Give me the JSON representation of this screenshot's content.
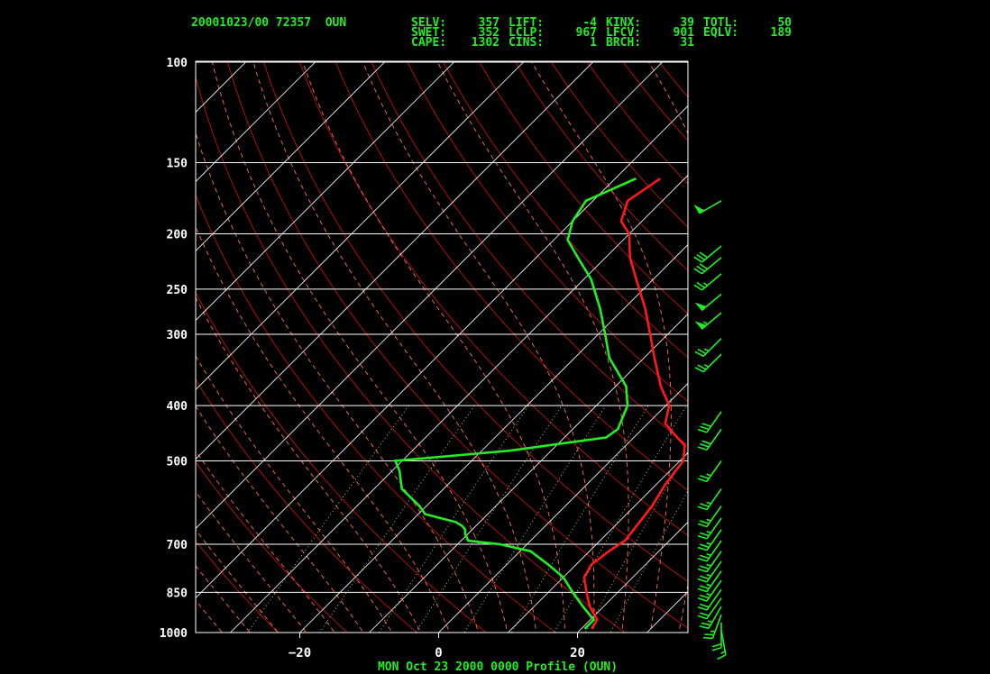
{
  "header": {
    "station_line": "20001023/00 72357  OUN",
    "indices": [
      [
        "SELV:",
        "357",
        "LIFT:",
        "-4",
        "KINX:",
        "39",
        "TOTL:",
        "50"
      ],
      [
        "SWET:",
        "352",
        "LCLP:",
        "967",
        "LFCV:",
        "901",
        "EQLV:",
        "189"
      ],
      [
        "CAPE:",
        "1302",
        "CINS:",
        "1",
        "BRCH:",
        "31",
        "",
        ""
      ]
    ]
  },
  "caption": "MON Oct 23 2000 0000 Profile (OUN)",
  "colors": {
    "temperature": "#ff1a1a",
    "dewpoint": "#22ee22",
    "wind": "#22ee22",
    "isobar": "#ffffff",
    "isotherm": "#ffffff",
    "dry_adiabat": "#c01010",
    "moist_adiabat": "#ff7050",
    "mixing_ratio": "#e8e880",
    "frame": "#ffffff"
  },
  "chart_data": {
    "type": "line",
    "title": "",
    "xlabel": "",
    "ylabel": "",
    "y_scale": "log",
    "ylim": [
      1000,
      100
    ],
    "xlim_at_1000hPa": [
      -35,
      35
    ],
    "pressure_ticks": [
      100,
      150,
      200,
      250,
      300,
      400,
      500,
      700,
      850,
      1000
    ],
    "temperature_ticks": [
      -20,
      0,
      20
    ],
    "series": [
      {
        "key": "temperature",
        "points": [
          [
            985,
            21.5
          ],
          [
            950,
            21.0
          ],
          [
            900,
            18.0
          ],
          [
            850,
            15.5
          ],
          [
            800,
            13.0
          ],
          [
            760,
            12.2
          ],
          [
            720,
            12.8
          ],
          [
            690,
            13.6
          ],
          [
            600,
            12.5
          ],
          [
            550,
            11.3
          ],
          [
            500,
            10.5
          ],
          [
            470,
            8.5
          ],
          [
            450,
            5.5
          ],
          [
            430,
            2.5
          ],
          [
            400,
            0.5
          ],
          [
            370,
            -3.5
          ],
          [
            330,
            -8.5
          ],
          [
            300,
            -12.5
          ],
          [
            270,
            -17.0
          ],
          [
            240,
            -22.5
          ],
          [
            220,
            -26.5
          ],
          [
            200,
            -30.0
          ],
          [
            190,
            -33.0
          ],
          [
            175,
            -35.0
          ],
          [
            160,
            -33.5
          ]
        ]
      },
      {
        "key": "dewpoint",
        "points": [
          [
            985,
            20.5
          ],
          [
            950,
            20.5
          ],
          [
            900,
            17.0
          ],
          [
            850,
            13.5
          ],
          [
            800,
            10.0
          ],
          [
            760,
            6.0
          ],
          [
            720,
            1.5
          ],
          [
            700,
            -4.0
          ],
          [
            690,
            -9.0
          ],
          [
            670,
            -10.5
          ],
          [
            660,
            -11.0
          ],
          [
            650,
            -12.0
          ],
          [
            640,
            -13.5
          ],
          [
            620,
            -19.0
          ],
          [
            600,
            -21.0
          ],
          [
            560,
            -26.0
          ],
          [
            520,
            -29.0
          ],
          [
            500,
            -31.0
          ],
          [
            480,
            -16.0
          ],
          [
            455,
            -4.0
          ],
          [
            440,
            -3.5
          ],
          [
            400,
            -5.5
          ],
          [
            370,
            -8.5
          ],
          [
            330,
            -15.0
          ],
          [
            300,
            -19.0
          ],
          [
            270,
            -23.5
          ],
          [
            240,
            -29.0
          ],
          [
            220,
            -34.0
          ],
          [
            205,
            -38.0
          ],
          [
            190,
            -40.0
          ],
          [
            175,
            -41.0
          ],
          [
            160,
            -37.0
          ]
        ]
      }
    ],
    "wind_barbs": [
      {
        "p": 990,
        "dir": 170,
        "spd": 15
      },
      {
        "p": 960,
        "dir": 180,
        "spd": 20
      },
      {
        "p": 930,
        "dir": 200,
        "spd": 25
      },
      {
        "p": 900,
        "dir": 210,
        "spd": 25
      },
      {
        "p": 870,
        "dir": 215,
        "spd": 20
      },
      {
        "p": 840,
        "dir": 215,
        "spd": 20
      },
      {
        "p": 810,
        "dir": 215,
        "spd": 25
      },
      {
        "p": 780,
        "dir": 215,
        "spd": 25
      },
      {
        "p": 750,
        "dir": 215,
        "spd": 25
      },
      {
        "p": 720,
        "dir": 215,
        "spd": 25
      },
      {
        "p": 690,
        "dir": 215,
        "spd": 25
      },
      {
        "p": 660,
        "dir": 215,
        "spd": 25
      },
      {
        "p": 630,
        "dir": 215,
        "spd": 25
      },
      {
        "p": 600,
        "dir": 215,
        "spd": 25
      },
      {
        "p": 560,
        "dir": 215,
        "spd": 25
      },
      {
        "p": 500,
        "dir": 215,
        "spd": 25
      },
      {
        "p": 440,
        "dir": 215,
        "spd": 30
      },
      {
        "p": 410,
        "dir": 215,
        "spd": 30
      },
      {
        "p": 325,
        "dir": 225,
        "spd": 25
      },
      {
        "p": 305,
        "dir": 225,
        "spd": 25
      },
      {
        "p": 275,
        "dir": 230,
        "spd": 55
      },
      {
        "p": 255,
        "dir": 230,
        "spd": 50
      },
      {
        "p": 235,
        "dir": 230,
        "spd": 25
      },
      {
        "p": 220,
        "dir": 230,
        "spd": 30
      },
      {
        "p": 210,
        "dir": 230,
        "spd": 30
      },
      {
        "p": 175,
        "dir": 240,
        "spd": 50
      }
    ]
  }
}
